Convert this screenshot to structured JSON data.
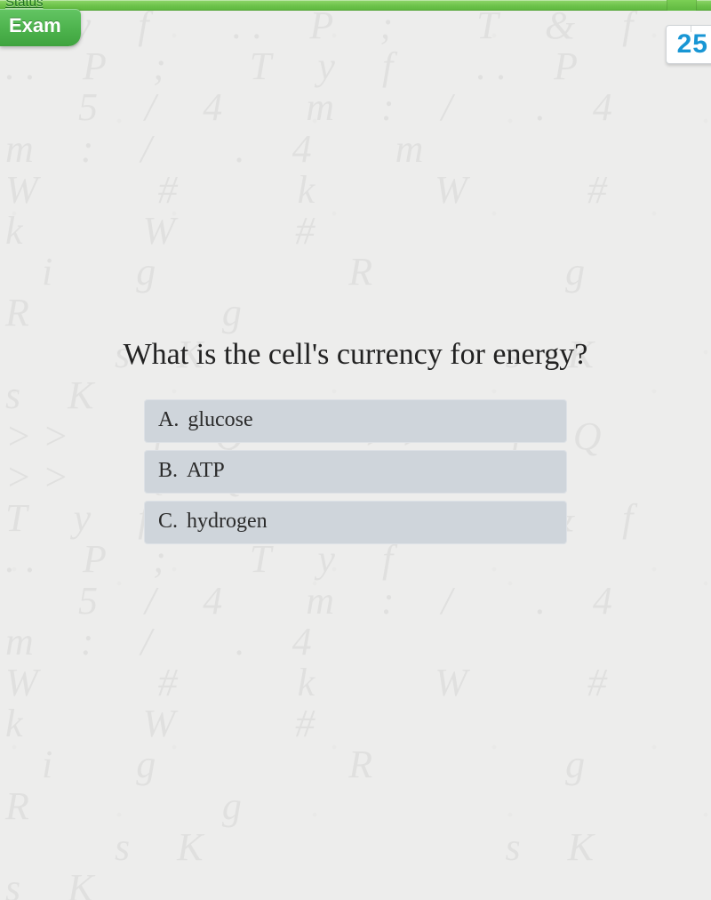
{
  "header": {
    "status_link": "Status",
    "tab_label": "Exam",
    "bar_gradient_top": "#8fd66a",
    "bar_gradient_bottom": "#5fb83f",
    "tab_bg_top": "#63c563",
    "tab_bg_bottom": "#3fa33f",
    "tab_text_color": "#ffffff",
    "status_text_color": "#1f6f1f"
  },
  "timer": {
    "value": "25",
    "text_color": "#1896d4",
    "bg_color": "#ffffff",
    "border_color": "#cfd3d6",
    "fontsize": 30
  },
  "background": {
    "color": "#ededec",
    "glyph_color": "rgba(0,0,0,0.055)",
    "glyph_text": "T y f  .. P ;  T & f  .. P ;  T y f  .. P\n  5 / 4  m : /  . 4  m : /  . 4  m\nW   #   k   W   #   k   W   #\n i  g     R     g     R     g\n   s K        s K        s K\n>>  { Q   >>  { Q   >>  { Q   >>\nT y f  .. P ;  T & f  .. P ;  T y f\n  5 / 4  m : /  . 4  m : /  . 4\nW   #   k   W   #   k   W   #\n i  g     R     g     R     g\n   s K        s K        s K\n>>  { Q   >>  { Q   >>  { Q\nT y f  .. P ;  T & f  .. P ;  T y f\n  5 / 4  m : /  . 4  m : /  . 4\nW   #   k   W   #   k   W   #\n i  g     R     g     R     g\n   s K        s K        s K\n>>  { Q   >>  { Q   >>  { Q\nT y f  .. P ;  T & f  .. P ;  T y f\n  5 / 4  m : /  . 4  m : /  . 4\nW   #   k   W   #   k   W   #"
  },
  "quiz": {
    "question": "What is the cell's currency for energy?",
    "question_fontsize": 34,
    "question_color": "#222222",
    "answer_bg": "#cfd5db",
    "answer_fontsize": 24,
    "answer_color": "#2b2b2b",
    "answers": [
      {
        "letter": "A.",
        "text": "glucose"
      },
      {
        "letter": "B.",
        "text": "ATP"
      },
      {
        "letter": "C.",
        "text": "hydrogen"
      }
    ]
  }
}
